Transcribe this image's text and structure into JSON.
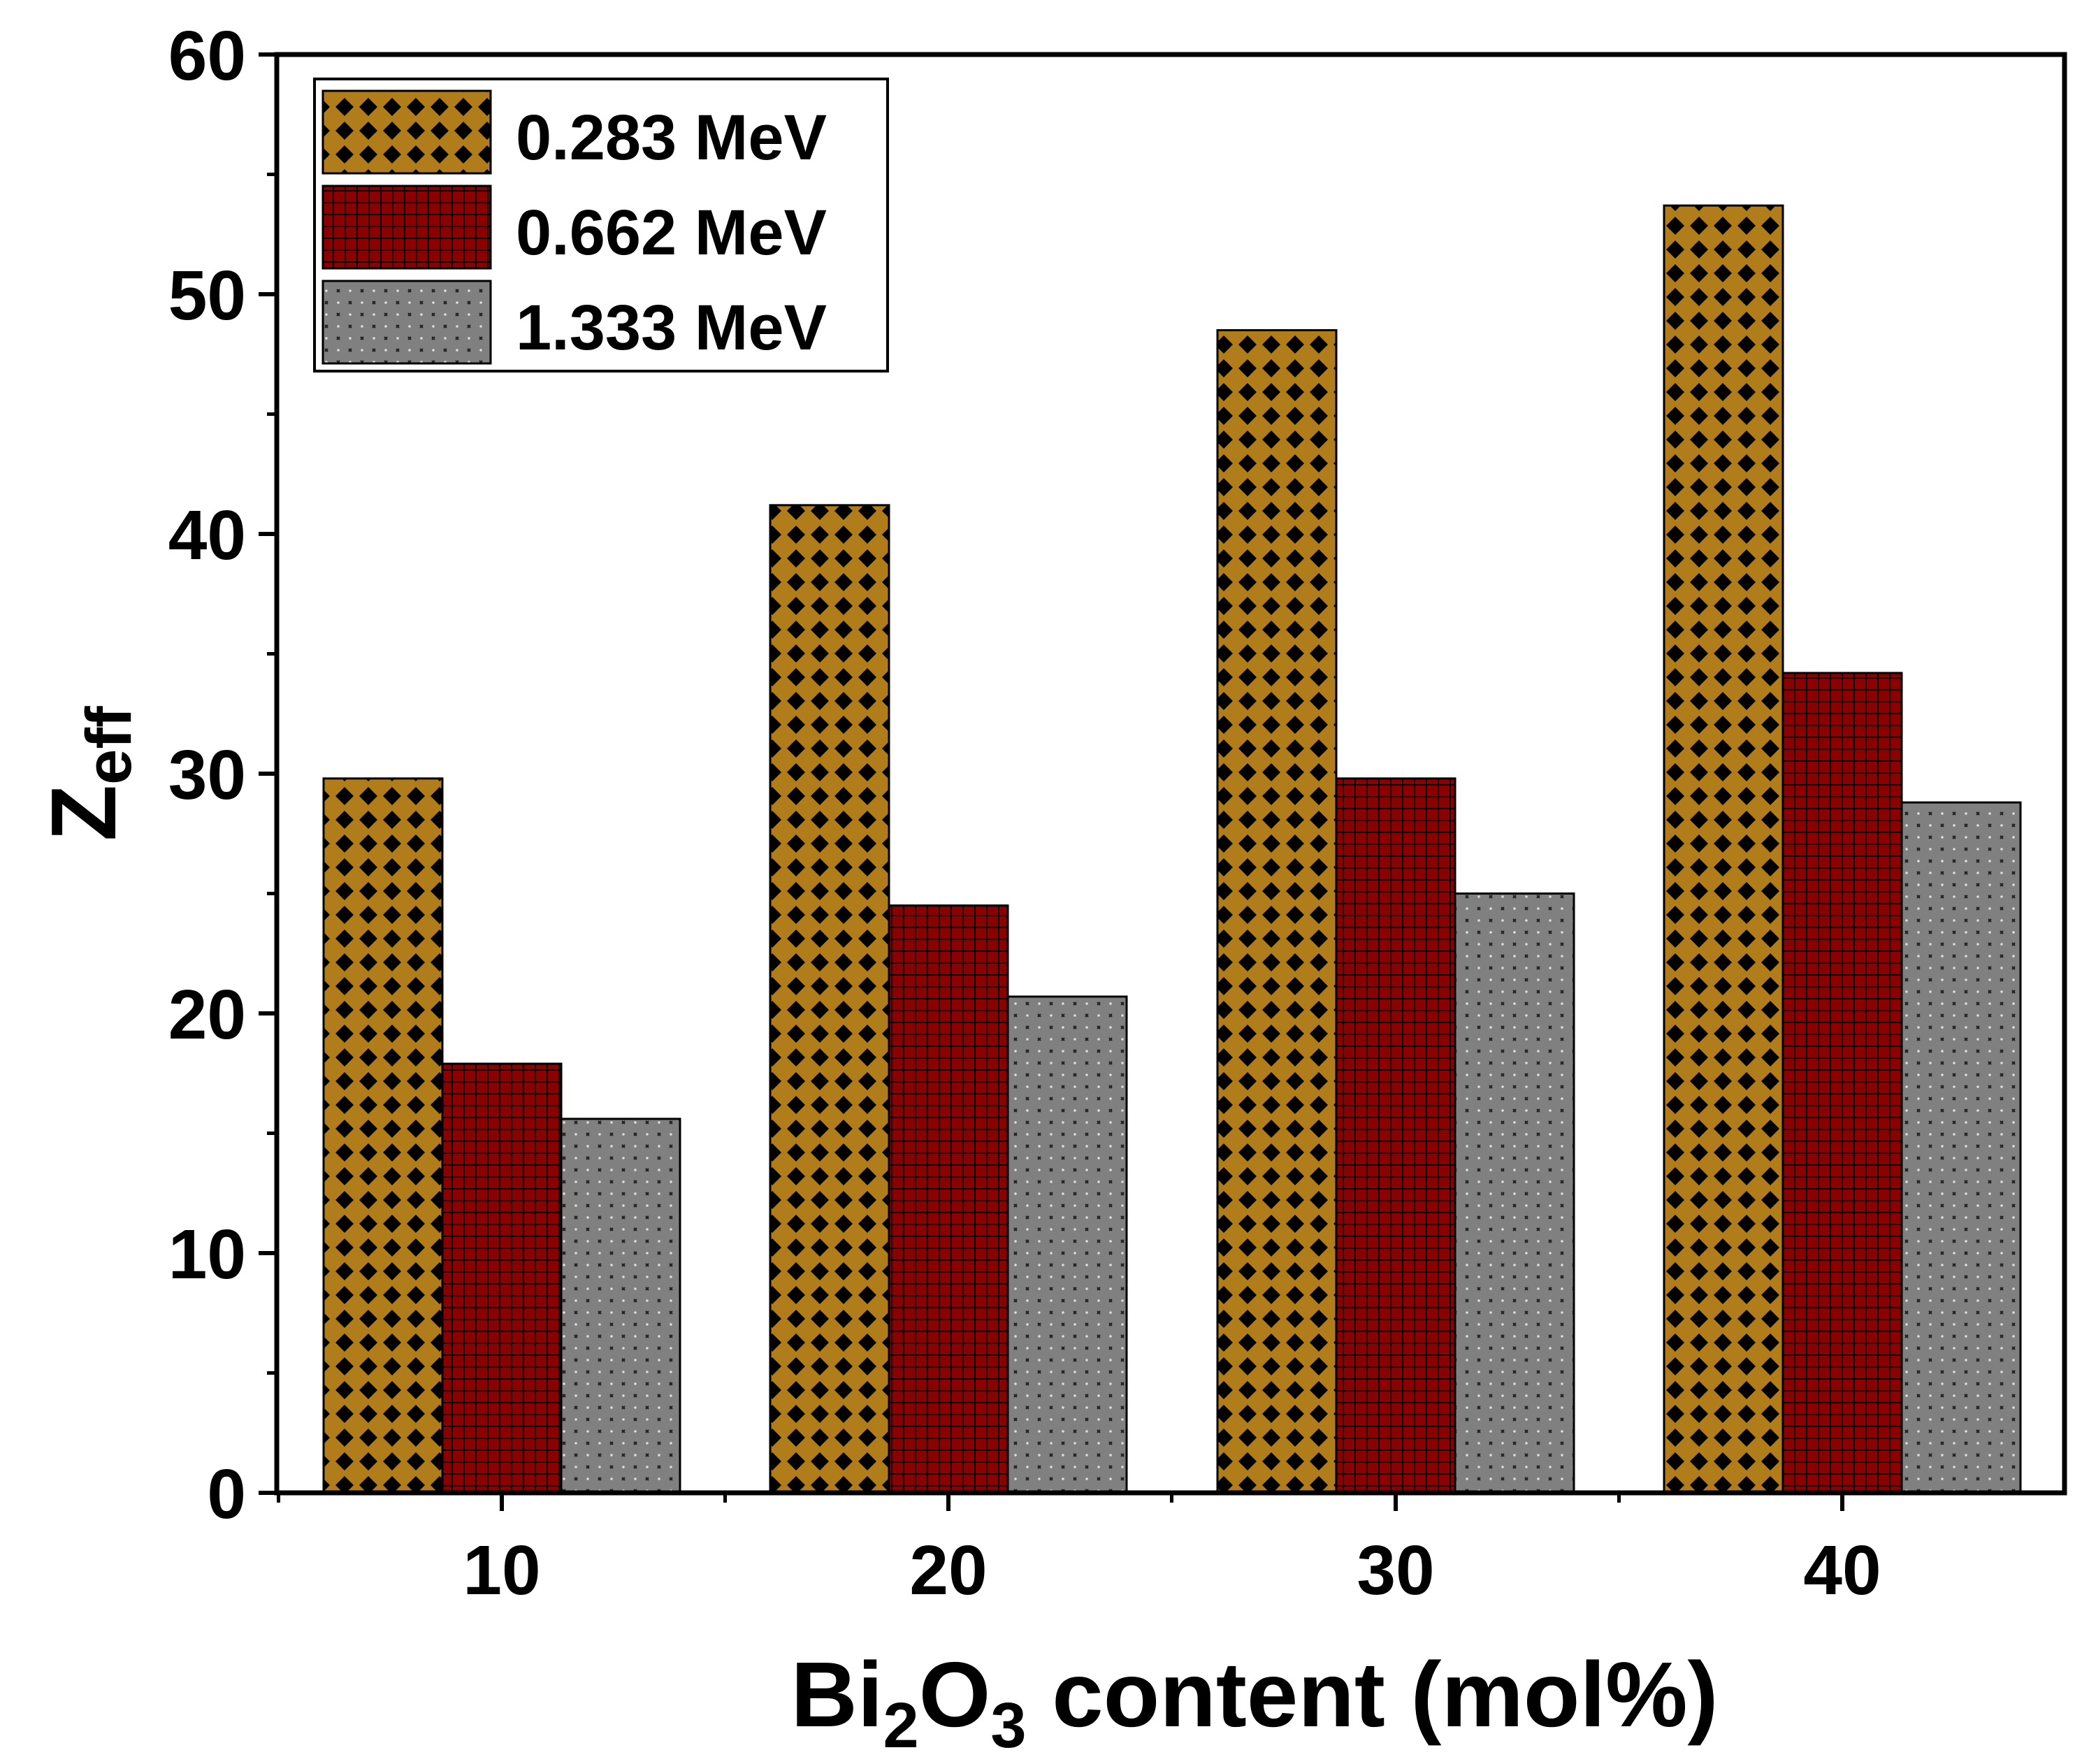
{
  "chart_data": {
    "type": "bar",
    "categories": [
      "10",
      "20",
      "30",
      "40"
    ],
    "series": [
      {
        "name": "0.283 MeV",
        "values": [
          29.8,
          41.2,
          48.5,
          53.7
        ],
        "color": "#b07d1a",
        "pattern": "diamond-dots"
      },
      {
        "name": "0.662 MeV",
        "values": [
          17.9,
          24.5,
          29.8,
          34.2
        ],
        "color": "#8b0000",
        "pattern": "grid"
      },
      {
        "name": "1.333 MeV",
        "values": [
          15.6,
          20.7,
          25.0,
          28.8
        ],
        "color": "#808080",
        "pattern": "speckle"
      }
    ],
    "xlabel": {
      "pre": "Bi",
      "sub1": "2",
      "mid": "O",
      "sub2": "3",
      "post": " content (mol%)"
    },
    "ylabel": {
      "main": "Z",
      "sub": "eff"
    },
    "ylim": [
      0,
      60
    ],
    "yticks": [
      "0",
      "10",
      "20",
      "30",
      "40",
      "50",
      "60"
    ],
    "grid": false,
    "legend_position": "top-left"
  }
}
